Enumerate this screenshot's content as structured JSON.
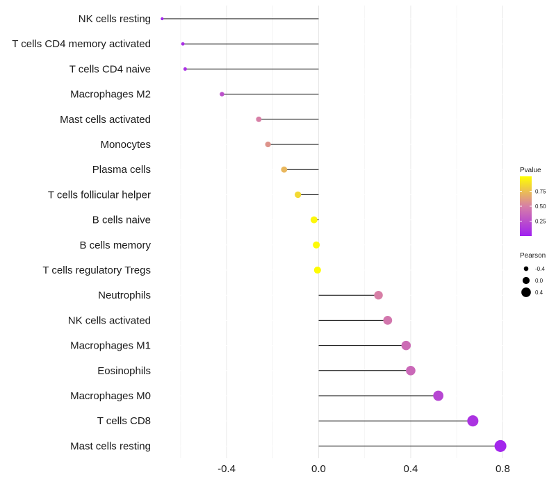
{
  "chart_data": {
    "type": "lollipop",
    "categories": [
      "NK cells resting",
      "T cells CD4 memory activated",
      "T cells CD4 naive",
      "Macrophages M2",
      "Mast cells activated",
      "Monocytes",
      "Plasma cells",
      "T cells follicular helper",
      "B cells naive",
      "B cells memory",
      "T cells regulatory  Tregs ",
      "Neutrophils",
      "NK cells activated",
      "Macrophages M1",
      "Eosinophils",
      "Macrophages M0",
      "T cells CD8",
      "Mast cells resting"
    ],
    "values": [
      -0.68,
      -0.59,
      -0.58,
      -0.42,
      -0.26,
      -0.22,
      -0.15,
      -0.09,
      -0.02,
      -0.01,
      -0.005,
      0.26,
      0.3,
      0.38,
      0.4,
      0.52,
      0.67,
      0.79
    ],
    "pvalues": [
      0.02,
      0.08,
      0.09,
      0.25,
      0.5,
      0.58,
      0.72,
      0.85,
      0.97,
      0.98,
      0.99,
      0.5,
      0.45,
      0.4,
      0.38,
      0.2,
      0.1,
      0.03
    ],
    "xlim": [
      -0.69,
      0.82
    ],
    "x_ticks": [
      -0.4,
      0.0,
      0.4,
      0.8
    ],
    "x_tick_labels": [
      "-0.4",
      "0.0",
      "0.4",
      "0.8"
    ],
    "xlabel": "",
    "ylabel": "",
    "title": "",
    "grid": true,
    "color_low": "#a020f0",
    "color_mid": "#d77fa6",
    "color_high": "#ffff00",
    "legend": {
      "color_title": "Pvalue",
      "color_ticks": [
        0.75,
        0.5,
        0.25
      ],
      "color_tick_labels": [
        "0.75",
        "0.50",
        "0.25"
      ],
      "size_title": "Pearson",
      "size_values": [
        -0.4,
        0.0,
        0.4
      ],
      "size_labels": [
        "-0.4",
        "0.0",
        "0.4"
      ]
    }
  }
}
